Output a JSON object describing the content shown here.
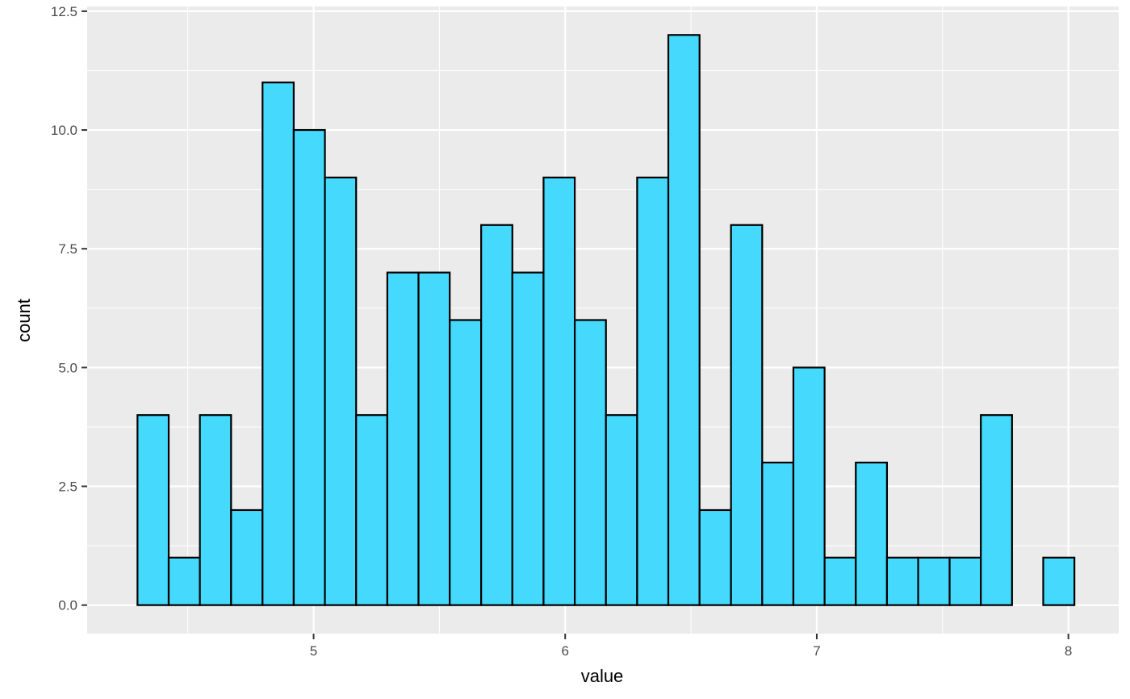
{
  "chart_data": {
    "type": "bar",
    "xlabel": "value",
    "ylabel": "count",
    "xlim": [
      4.1,
      8.2
    ],
    "ylim": [
      -0.6,
      12.6
    ],
    "x_ticks": [
      5,
      6,
      7,
      8
    ],
    "x_tick_labels": [
      "5",
      "6",
      "7",
      "8"
    ],
    "y_ticks": [
      0,
      2.5,
      5,
      7.5,
      10,
      12.5
    ],
    "y_tick_labels": [
      "0.0",
      "2.5",
      "5.0",
      "7.5",
      "10.0",
      "12.5"
    ],
    "bin_width": 0.124,
    "bins": [
      {
        "x0": 4.3,
        "x1": 4.424,
        "count": 4
      },
      {
        "x0": 4.424,
        "x1": 4.548,
        "count": 1
      },
      {
        "x0": 4.548,
        "x1": 4.672,
        "count": 4
      },
      {
        "x0": 4.672,
        "x1": 4.797,
        "count": 2
      },
      {
        "x0": 4.797,
        "x1": 4.921,
        "count": 11
      },
      {
        "x0": 4.921,
        "x1": 5.045,
        "count": 10
      },
      {
        "x0": 5.045,
        "x1": 5.169,
        "count": 9
      },
      {
        "x0": 5.169,
        "x1": 5.293,
        "count": 4
      },
      {
        "x0": 5.293,
        "x1": 5.417,
        "count": 7
      },
      {
        "x0": 5.417,
        "x1": 5.541,
        "count": 7
      },
      {
        "x0": 5.541,
        "x1": 5.666,
        "count": 6
      },
      {
        "x0": 5.666,
        "x1": 5.79,
        "count": 8
      },
      {
        "x0": 5.79,
        "x1": 5.914,
        "count": 7
      },
      {
        "x0": 5.914,
        "x1": 6.038,
        "count": 9
      },
      {
        "x0": 6.038,
        "x1": 6.162,
        "count": 6
      },
      {
        "x0": 6.162,
        "x1": 6.286,
        "count": 4
      },
      {
        "x0": 6.286,
        "x1": 6.41,
        "count": 9
      },
      {
        "x0": 6.41,
        "x1": 6.534,
        "count": 12
      },
      {
        "x0": 6.534,
        "x1": 6.659,
        "count": 2
      },
      {
        "x0": 6.659,
        "x1": 6.783,
        "count": 8
      },
      {
        "x0": 6.783,
        "x1": 6.907,
        "count": 3
      },
      {
        "x0": 6.907,
        "x1": 7.031,
        "count": 5
      },
      {
        "x0": 7.031,
        "x1": 7.155,
        "count": 1
      },
      {
        "x0": 7.155,
        "x1": 7.279,
        "count": 3
      },
      {
        "x0": 7.279,
        "x1": 7.403,
        "count": 1
      },
      {
        "x0": 7.403,
        "x1": 7.528,
        "count": 1
      },
      {
        "x0": 7.528,
        "x1": 7.652,
        "count": 1
      },
      {
        "x0": 7.652,
        "x1": 7.776,
        "count": 4
      },
      {
        "x0": 7.776,
        "x1": 7.9,
        "count": 0
      },
      {
        "x0": 7.9,
        "x1": 8.024,
        "count": 1
      }
    ],
    "colors": {
      "bar_fill": "#45D9FD",
      "bar_stroke": "#000000",
      "panel_background": "#EBEBEB",
      "grid_major": "#FFFFFF"
    },
    "grid": true,
    "legend": "none"
  }
}
